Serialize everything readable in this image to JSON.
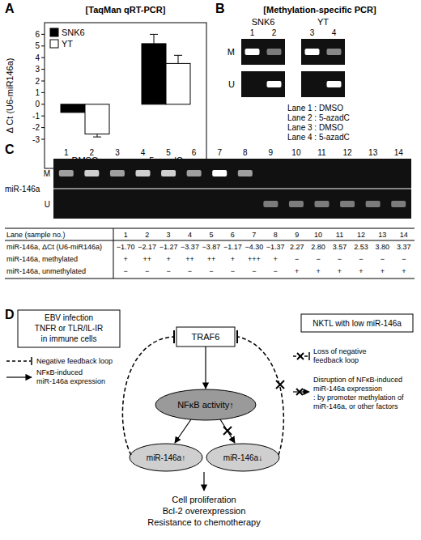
{
  "panel_labels": [
    "A",
    "B",
    "C",
    "D"
  ],
  "chart_data": {
    "type": "bar",
    "title": "[TaqMan qRT-PCR]",
    "y_label": "Δ Ct (U6-miR146a)",
    "categories": [
      "DMSO",
      "5-azadC"
    ],
    "series": [
      {
        "name": "SNK6",
        "color": "#000000",
        "values": [
          -0.7,
          5.2
        ],
        "errors": [
          null,
          0.8
        ]
      },
      {
        "name": "YT",
        "color": "#ffffff",
        "values": [
          -2.55,
          3.5
        ],
        "errors": [
          0.25,
          0.7
        ]
      }
    ],
    "ylim": [
      -5.5,
      7
    ],
    "yticks": [
      -3,
      -2,
      -1,
      0,
      1,
      2,
      3,
      4,
      5,
      6
    ],
    "grid": false,
    "legend": "top-left"
  },
  "panel_b": {
    "title": "[Methylation-specific PCR]",
    "groups": [
      {
        "name": "SNK6",
        "lanes": [
          "1",
          "2"
        ]
      },
      {
        "name": "YT",
        "lanes": [
          "3",
          "4"
        ]
      }
    ],
    "rows": [
      "M",
      "U"
    ],
    "bands": [
      [
        1,
        0.45,
        1,
        0.5
      ],
      [
        0,
        1,
        0,
        1
      ]
    ],
    "lane_key": [
      "Lane 1 : DMSO",
      "Lane 2 : 5-azadC",
      "Lane 3 : DMSO",
      "Lane 4 : 5-azadC"
    ]
  },
  "panel_c": {
    "gel_label": "miR-146a",
    "rows": [
      "M",
      "U"
    ],
    "table": [
      {
        "label": "Lane (sample no.)",
        "cells": [
          "1",
          "2",
          "3",
          "4",
          "5",
          "6",
          "7",
          "8",
          "9",
          "10",
          "11",
          "12",
          "13",
          "14"
        ]
      },
      {
        "label": "miR-146a, ΔCt (U6-miR146a)",
        "cells": [
          "−1.70",
          "−2.17",
          "−1.27",
          "−3.37",
          "−3.87",
          "−1.17",
          "−4.30",
          "−1.37",
          "2.27",
          "2.80",
          "3.57",
          "2.53",
          "3.80",
          "3.37"
        ]
      },
      {
        "label": "miR-146a, methylated",
        "cells": [
          "+",
          "++",
          "+",
          "++",
          "++",
          "+",
          "+++",
          "+",
          "−",
          "−",
          "−",
          "−",
          "−",
          "−"
        ]
      },
      {
        "label": "miR-146a, unmethylated",
        "cells": [
          "−",
          "−",
          "−",
          "−",
          "−",
          "−",
          "−",
          "−",
          "+",
          "+",
          "+",
          "+",
          "+",
          "+"
        ]
      }
    ]
  },
  "panel_d": {
    "source_box": [
      "EBV infection",
      "TNFR or TLR/IL-IR",
      "in immune cells"
    ],
    "key_left": [
      [
        "Negative feedback loop"
      ],
      [
        "NFκB-induced",
        "miR-146a expression"
      ]
    ],
    "nodes": [
      "TRAF6",
      "NFκB activity↑",
      "miR-146a↑",
      "miR-146a↓"
    ],
    "outcomes": [
      "Cell proliferation",
      "Bcl-2 overexpression",
      "Resistance to chemotherapy"
    ],
    "target_box": [
      "NKTL with low miR-146a"
    ],
    "key_right": [
      [
        "Loss of negative",
        "feedback loop"
      ],
      [
        "Disruption of NFκB-induced",
        "miR-146a expression",
        ": by promoter methylation of",
        "miR-146a, or other factors"
      ]
    ]
  }
}
